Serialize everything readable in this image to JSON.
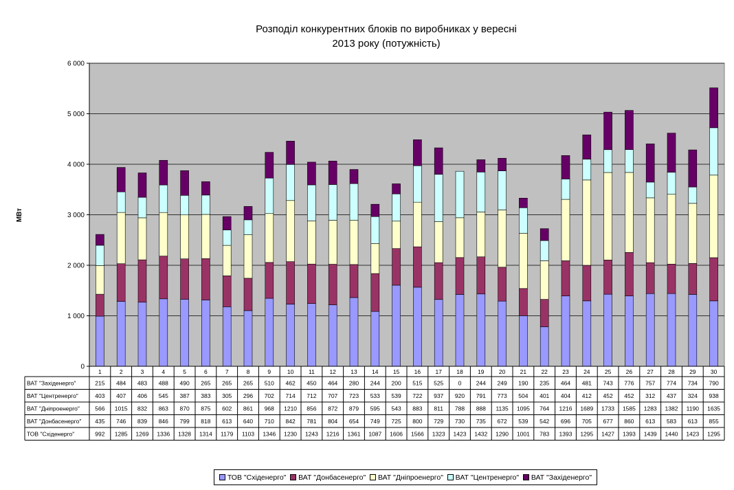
{
  "chart_data": {
    "type": "bar",
    "stacked": true,
    "title_lines": [
      "Розподіл конкурентних блоків по виробниках у вересні",
      "2013 року (потужність)"
    ],
    "ylabel": "МВт",
    "xlabel": "",
    "ylim": [
      0,
      6000
    ],
    "yticks": [
      "0",
      "1 000",
      "2 000",
      "3 000",
      "4 000",
      "5 000",
      "6 000"
    ],
    "grid": true,
    "legend_position": "bottom",
    "categories": [
      "1",
      "2",
      "3",
      "4",
      "5",
      "6",
      "7",
      "8",
      "9",
      "10",
      "11",
      "12",
      "13",
      "14",
      "15",
      "16",
      "17",
      "18",
      "19",
      "20",
      "21",
      "22",
      "23",
      "24",
      "25",
      "26",
      "27",
      "28",
      "29",
      "30"
    ],
    "series": [
      {
        "name": "ТОВ \"Східенерго\"",
        "color": "#9999ff",
        "values": [
          992,
          1285,
          1269,
          1336,
          1328,
          1314,
          1179,
          1103,
          1346,
          1230,
          1243,
          1216,
          1361,
          1087,
          1606,
          1566,
          1323,
          1423,
          1432,
          1290,
          1001,
          783,
          1393,
          1295,
          1427,
          1393,
          1439,
          1440,
          1423,
          1295
        ]
      },
      {
        "name": "ВАТ \"Донбасенерго\"",
        "color": "#993366",
        "values": [
          435,
          746,
          839,
          846,
          799,
          818,
          613,
          640,
          710,
          842,
          781,
          804,
          654,
          749,
          725,
          800,
          729,
          730,
          735,
          672,
          539,
          542,
          696,
          705,
          677,
          860,
          613,
          583,
          613,
          855
        ]
      },
      {
        "name": "ВАТ \"Дніпроенерго\"",
        "color": "#ffffcc",
        "values": [
          566,
          1015,
          832,
          863,
          870,
          875,
          602,
          861,
          968,
          1210,
          856,
          872,
          879,
          595,
          543,
          883,
          811,
          788,
          888,
          1135,
          1095,
          764,
          1216,
          1689,
          1733,
          1585,
          1283,
          1382,
          1190,
          1635
        ]
      },
      {
        "name": "ВАТ \"Центренерго\"",
        "color": "#ccffff",
        "values": [
          403,
          407,
          406,
          545,
          387,
          383,
          305,
          296,
          702,
          714,
          712,
          707,
          723,
          533,
          539,
          722,
          937,
          920,
          791,
          773,
          504,
          401,
          404,
          412,
          452,
          452,
          312,
          437,
          324,
          938
        ]
      },
      {
        "name": "ВАТ \"Західенерго\"",
        "color": "#660066",
        "values": [
          215,
          484,
          483,
          488,
          490,
          265,
          265,
          265,
          510,
          462,
          450,
          464,
          280,
          244,
          200,
          515,
          525,
          0,
          244,
          249,
          190,
          235,
          464,
          481,
          743,
          776,
          757,
          774,
          734,
          790
        ]
      }
    ],
    "table_row_order": [
      4,
      3,
      2,
      1,
      0
    ]
  }
}
